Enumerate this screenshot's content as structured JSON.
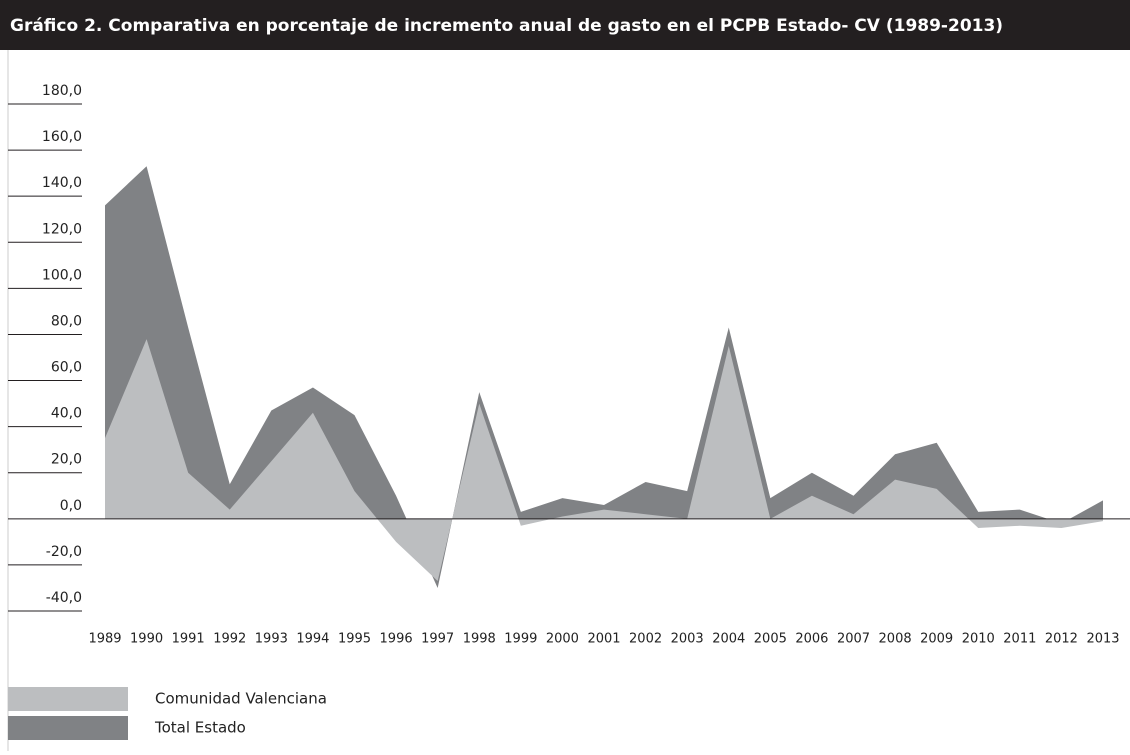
{
  "chart_data": {
    "type": "area",
    "title": "Gráfico 2. Comparativa en porcentaje de incremento anual de gasto en el PCPB Estado- CV (1989-2013)",
    "categories": [
      "1989",
      "1990",
      "1991",
      "1992",
      "1993",
      "1994",
      "1995",
      "1996",
      "1997",
      "1998",
      "1999",
      "2000",
      "2001",
      "2002",
      "2003",
      "2004",
      "2005",
      "2006",
      "2007",
      "2008",
      "2009",
      "2010",
      "2011",
      "2012",
      "2013"
    ],
    "series": [
      {
        "name": "Comunidad Valenciana",
        "color": "#bcbec0",
        "values": [
          35,
          78,
          20,
          4,
          25,
          46,
          12,
          -10,
          -27,
          50,
          -3,
          1,
          4,
          2,
          0,
          75,
          0,
          10,
          2,
          17,
          13,
          -4,
          -3,
          -4,
          -1
        ]
      },
      {
        "name": "Total Estado",
        "color": "#808285",
        "values": [
          136,
          153,
          83,
          15,
          47,
          57,
          45,
          10,
          -30,
          55,
          3,
          9,
          6,
          16,
          12,
          83,
          9,
          20,
          10,
          28,
          33,
          3,
          4,
          -2,
          8
        ]
      }
    ],
    "ylim": [
      -40,
      180
    ],
    "yticks": [
      {
        "value": -40,
        "label": "-40,0"
      },
      {
        "value": -20,
        "label": "-20,0"
      },
      {
        "value": 0,
        "label": "0,0"
      },
      {
        "value": 20,
        "label": "20,0"
      },
      {
        "value": 40,
        "label": "40,0"
      },
      {
        "value": 60,
        "label": "60,0"
      },
      {
        "value": 80,
        "label": "80,0"
      },
      {
        "value": 100,
        "label": "100,0"
      },
      {
        "value": 120,
        "label": "120,0"
      },
      {
        "value": 140,
        "label": "140,0"
      },
      {
        "value": 160,
        "label": "160,0"
      },
      {
        "value": 180,
        "label": "180,0"
      }
    ],
    "legend": "bottom-left"
  }
}
